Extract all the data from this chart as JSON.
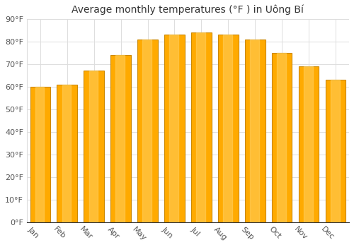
{
  "title": "Average monthly temperatures (°F ) in Uông Bí",
  "months": [
    "Jan",
    "Feb",
    "Mar",
    "Apr",
    "May",
    "Jun",
    "Jul",
    "Aug",
    "Sep",
    "Oct",
    "Nov",
    "Dec"
  ],
  "values": [
    60,
    61,
    67,
    74,
    81,
    83,
    84,
    83,
    81,
    75,
    69,
    63
  ],
  "bar_color": "#FFAA00",
  "bar_edge_color": "#CC8800",
  "background_color": "#ffffff",
  "ylim": [
    0,
    90
  ],
  "yticks": [
    0,
    10,
    20,
    30,
    40,
    50,
    60,
    70,
    80,
    90
  ],
  "ytick_labels": [
    "0°F",
    "10°F",
    "20°F",
    "30°F",
    "40°F",
    "50°F",
    "60°F",
    "70°F",
    "80°F",
    "90°F"
  ],
  "grid_color": "#dddddd",
  "title_fontsize": 10,
  "tick_fontsize": 8,
  "xtick_rotation": -45,
  "bar_width": 0.75
}
